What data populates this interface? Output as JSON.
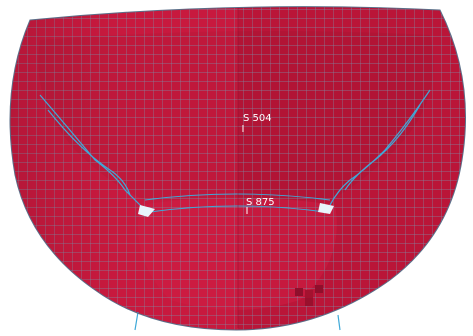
{
  "viewport": {
    "background": "#ffffff",
    "mesh_fill": "#c8193e",
    "mesh_fill_right": "#b41436",
    "mesh_line": "#7e8ea6",
    "edge_line": "#3fa9d8"
  },
  "labels": {
    "node_upper": "S 504",
    "node_lower": "S 875"
  }
}
